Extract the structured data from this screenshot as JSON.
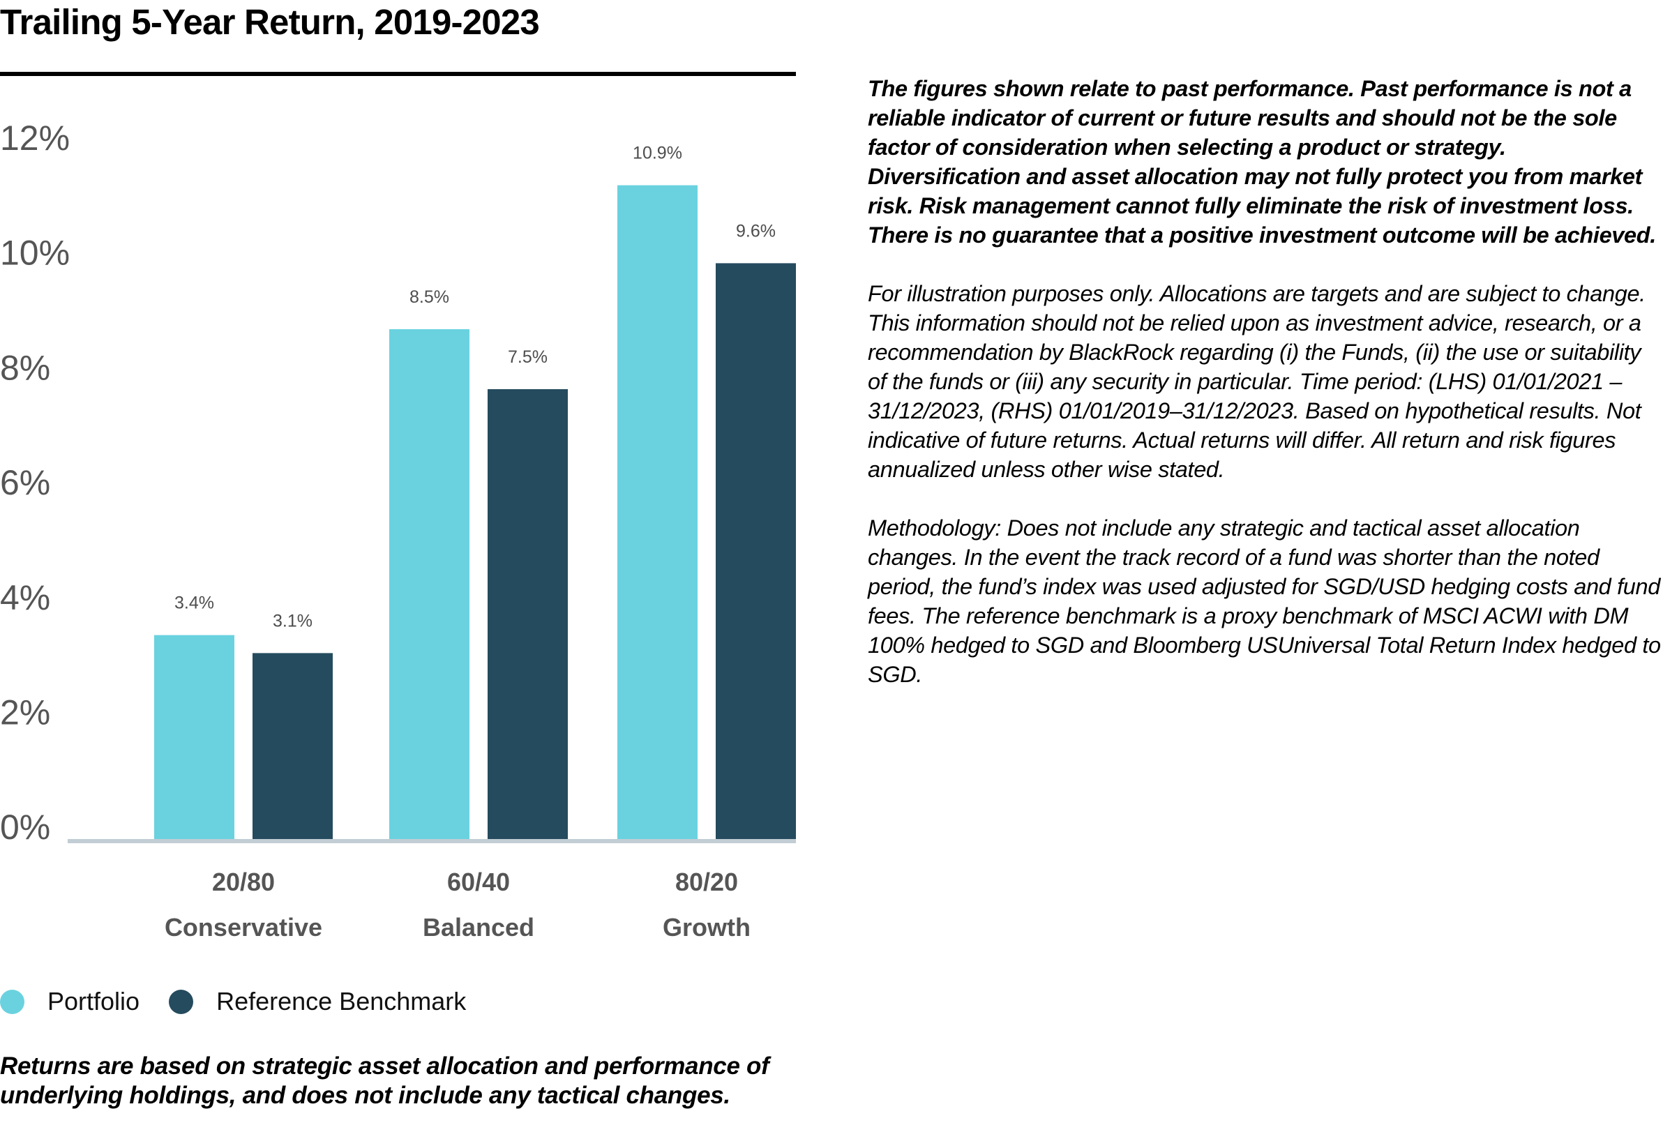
{
  "title": "Trailing 5-Year Return, 2019-2023",
  "chart_data": {
    "type": "bar",
    "title": "Trailing 5-Year Return, 2019-2023",
    "xlabel": "",
    "ylabel": "",
    "ylim": [
      0,
      12
    ],
    "yticks": [
      "0%",
      "2%",
      "4%",
      "6%",
      "8%",
      "10%",
      "12%"
    ],
    "grid": false,
    "legend_position": "bottom-left",
    "categories": [
      {
        "line1": "20/80",
        "line2": "Conservative"
      },
      {
        "line1": "60/40",
        "line2": "Balanced"
      },
      {
        "line1": "80/20",
        "line2": "Growth"
      }
    ],
    "series": [
      {
        "name": "Portfolio",
        "color": "#6AD2DF",
        "values": [
          3.4,
          8.5,
          10.9
        ],
        "labels": [
          "3.4%",
          "8.5%",
          "10.9%"
        ]
      },
      {
        "name": "Reference Benchmark",
        "color": "#254B5E",
        "values": [
          3.1,
          7.5,
          9.6
        ],
        "labels": [
          "3.1%",
          "7.5%",
          "9.6%"
        ]
      }
    ]
  },
  "legend": [
    {
      "label": "Portfolio",
      "color": "#6AD2DF"
    },
    {
      "label": "Reference Benchmark",
      "color": "#254B5E"
    }
  ],
  "footnote": "Returns are based on strategic asset allocation and performance of underlying holdings, and does not include any tactical changes.",
  "notes": {
    "disclaimer": "The figures shown relate to past performance. Past performance is not a reliable indicator of current or future results and should not be the sole factor of consideration when selecting a product or strategy. Diversification and asset allocation may not fully protect you from market risk. Risk management cannot fully eliminate the risk of investment loss. There is no guarantee that a positive investment outcome will be achieved.",
    "illustration": "For illustration purposes only. Allocations are targets and are subject to change. This information should not be relied upon as investment advice, research, or a recommendation by BlackRock regarding (i) the Funds, (ii) the use or suitability of the funds or (iii) any security in particular. Time period: (LHS) 01/01/2021 – 31/12/2023, (RHS) 01/01/2019–31/12/2023. Based on hypothetical results. Not indicative of future returns. Actual returns will differ. All return and risk figures annualized unless other wise stated.",
    "methodology": "Methodology: Does not include any strategic and tactical asset allocation changes. In the event the track record of a fund was shorter than the noted period, the fund’s index was used adjusted for SGD/USD hedging costs and fund fees. The reference benchmark is a proxy benchmark of MSCI ACWI with DM 100% hedged to SGD and Bloomberg USUniversal Total Return Index hedged to SGD."
  }
}
